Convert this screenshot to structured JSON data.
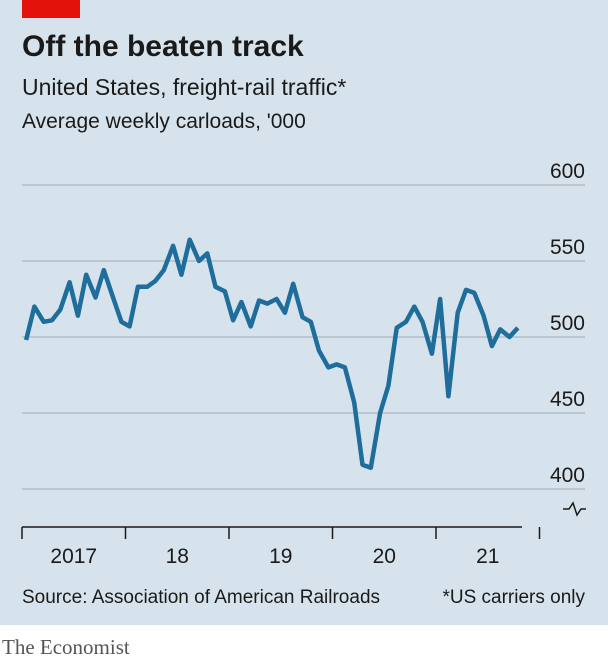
{
  "chart_data": {
    "type": "line",
    "title": "Off the beaten track",
    "subtitle": "United States, freight-rail traffic*",
    "y_label": "Average weekly carloads, '000",
    "source": "Source: Association of American Railroads",
    "note": "*US carriers only",
    "brand": "The Economist",
    "x": [
      2017.04,
      2017.12,
      2017.21,
      2017.29,
      2017.37,
      2017.46,
      2017.54,
      2017.62,
      2017.71,
      2017.79,
      2017.87,
      2017.96,
      2018.04,
      2018.12,
      2018.21,
      2018.29,
      2018.37,
      2018.46,
      2018.54,
      2018.62,
      2018.71,
      2018.79,
      2018.87,
      2018.96,
      2019.04,
      2019.12,
      2019.21,
      2019.29,
      2019.37,
      2019.46,
      2019.54,
      2019.62,
      2019.71,
      2019.79,
      2019.87,
      2019.96,
      2020.04,
      2020.12,
      2020.21,
      2020.29,
      2020.37,
      2020.46,
      2020.54,
      2020.62,
      2020.71,
      2020.79,
      2020.87,
      2020.96,
      2021.04,
      2021.12,
      2021.21,
      2021.29,
      2021.37,
      2021.46,
      2021.54,
      2021.62,
      2021.71,
      2021.79
    ],
    "series": [
      {
        "name": "Freight-rail traffic",
        "color": "#1f6d9b",
        "values": [
          498,
          520,
          510,
          511,
          518,
          536,
          514,
          541,
          526,
          544,
          528,
          510,
          507,
          533,
          533,
          537,
          544,
          560,
          541,
          564,
          550,
          555,
          533,
          530,
          511,
          523,
          507,
          524,
          522,
          525,
          516,
          535,
          513,
          510,
          491,
          480,
          482,
          480,
          457,
          416,
          414,
          450,
          468,
          506,
          510,
          520,
          510,
          489,
          525,
          461,
          516,
          531,
          529,
          514,
          494,
          505,
          500,
          506
        ]
      }
    ],
    "xlim": [
      2017,
      2022
    ],
    "xticks": [
      2017,
      2018,
      2019,
      2020,
      2021,
      2022
    ],
    "xtick_labels": [
      {
        "value": 2017.5,
        "label": "2017"
      },
      {
        "value": 2018.5,
        "label": "18"
      },
      {
        "value": 2019.5,
        "label": "19"
      },
      {
        "value": 2020.5,
        "label": "20"
      },
      {
        "value": 2021.5,
        "label": "21"
      }
    ],
    "ylim": [
      375,
      600
    ],
    "yticks": [
      400,
      450,
      500,
      550,
      600
    ],
    "grid": true
  }
}
